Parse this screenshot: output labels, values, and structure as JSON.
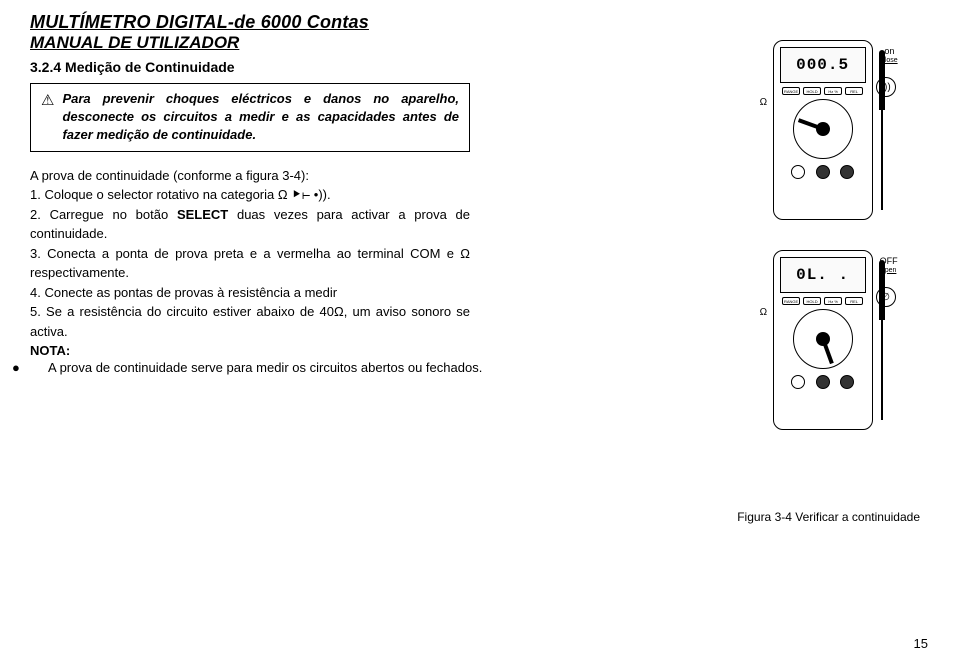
{
  "header": {
    "title": "MULTÍMETRO DIGITAL-de 6000 Contas",
    "subtitle": "MANUAL DE UTILIZADOR"
  },
  "section": {
    "number": "3.2.4",
    "title": "Medição de Continuidade"
  },
  "warning": {
    "text": "Para prevenir choques eléctricos e danos no aparelho, desconecte os circuitos a medir e as capacidades antes de fazer medição de continuidade."
  },
  "intro": "A prova de continuidade (conforme a figura 3-4):",
  "steps": {
    "s1_pre": "1. Coloque o selector rotativo na categoria Ω ",
    "s1_post": ".",
    "s2_pre": "2. Carregue no botão ",
    "s2_bold": "SELECT",
    "s2_post": " duas vezes para activar a prova de continuidade.",
    "s3": "3. Conecta a ponta de prova preta e a vermelha ao terminal COM e Ω respectivamente.",
    "s4": "4. Conecte as pontas de provas à resistência a medir",
    "s5": "5. Se a resistência do circuito estiver abaixo de 40Ω, um aviso sonoro se activa."
  },
  "note": {
    "label": "NOTA:",
    "text": "A prova de continuidade serve para medir os circuitos abertos ou fechados."
  },
  "devices": {
    "top": {
      "display": "000.5",
      "state_label": "on",
      "state_sub": "close",
      "sound": "•))"
    },
    "bottom": {
      "display": "0L. .",
      "state_label": "OFF",
      "state_sub": "open",
      "sound": "∅"
    },
    "omega": "Ω",
    "buttons": [
      "RANGE",
      "HOLD",
      "Hz %",
      "REL",
      "SELECT"
    ]
  },
  "figure_caption": "Figura 3-4 Verificar a continuidade",
  "page_number": "15",
  "colors": {
    "text": "#000000",
    "bg": "#ffffff"
  }
}
